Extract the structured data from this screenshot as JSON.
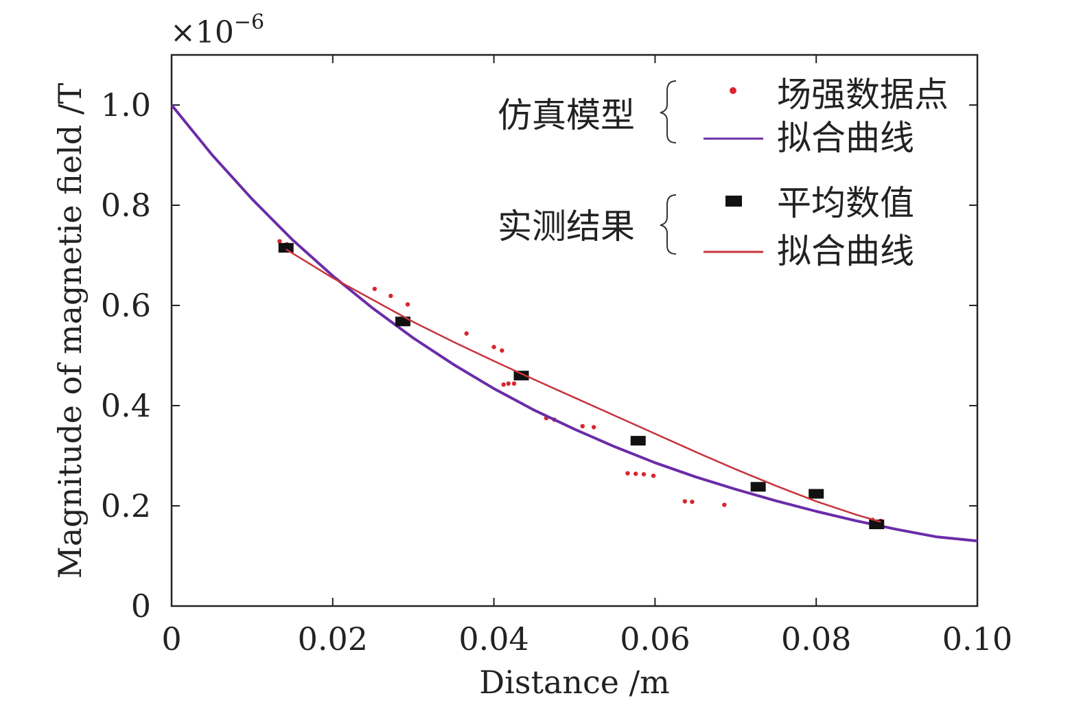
{
  "chart_data": {
    "type": "scatter",
    "xlabel": "Distance /m",
    "ylabel": "Magnitude of magnetie field /T",
    "y_multiplier": "×10",
    "y_multiplier_exp": "−6",
    "xlim": [
      0,
      0.1
    ],
    "ylim": [
      0,
      1.1
    ],
    "x_ticks": [
      0,
      0.02,
      0.04,
      0.06,
      0.08,
      0.1
    ],
    "x_tick_labels": [
      "0",
      "0.02",
      "0.04",
      "0.06",
      "0.08",
      "0.10"
    ],
    "y_ticks": [
      0,
      0.2,
      0.4,
      0.6,
      0.8,
      1.0
    ],
    "y_tick_labels": [
      "0",
      "0.2",
      "0.4",
      "0.6",
      "0.8",
      "1.0"
    ],
    "grid": false,
    "legend_position": "top-right",
    "legend_groups": [
      {
        "group_label": "仿真模型",
        "entries": [
          {
            "label": "场强数据点",
            "marker": "dot",
            "color": "#d9262e"
          },
          {
            "label": "拟合曲线",
            "marker": "line",
            "color": "#6a2ca8"
          }
        ]
      },
      {
        "group_label": "实测结果",
        "entries": [
          {
            "label": "平均数值",
            "marker": "square",
            "color": "#111111"
          },
          {
            "label": "拟合曲线",
            "marker": "line",
            "color": "#c8323a"
          }
        ]
      }
    ],
    "series": [
      {
        "kind": "scatter-dots",
        "color": "#d9262e",
        "points": [
          [
            0.0134,
            0.728
          ],
          [
            0.0143,
            0.722
          ],
          [
            0.0148,
            0.716
          ],
          [
            0.0252,
            0.633
          ],
          [
            0.0272,
            0.619
          ],
          [
            0.0293,
            0.602
          ],
          [
            0.0366,
            0.544
          ],
          [
            0.04,
            0.517
          ],
          [
            0.041,
            0.51
          ],
          [
            0.0412,
            0.442
          ],
          [
            0.0418,
            0.444
          ],
          [
            0.0425,
            0.444
          ],
          [
            0.0465,
            0.375
          ],
          [
            0.0475,
            0.372
          ],
          [
            0.051,
            0.359
          ],
          [
            0.0524,
            0.357
          ],
          [
            0.0566,
            0.265
          ],
          [
            0.0576,
            0.264
          ],
          [
            0.0586,
            0.263
          ],
          [
            0.0598,
            0.26
          ],
          [
            0.0637,
            0.209
          ],
          [
            0.0646,
            0.208
          ],
          [
            0.0686,
            0.202
          ],
          [
            0.087,
            0.172
          ],
          [
            0.088,
            0.17
          ]
        ]
      },
      {
        "kind": "fit-curve",
        "color": "#6a2ca8",
        "points": [
          [
            0.0,
            1.0
          ],
          [
            0.005,
            0.901
          ],
          [
            0.01,
            0.812
          ],
          [
            0.015,
            0.731
          ],
          [
            0.02,
            0.659
          ],
          [
            0.025,
            0.594
          ],
          [
            0.03,
            0.535
          ],
          [
            0.035,
            0.482
          ],
          [
            0.04,
            0.434
          ],
          [
            0.045,
            0.391
          ],
          [
            0.05,
            0.353
          ],
          [
            0.055,
            0.318
          ],
          [
            0.06,
            0.286
          ],
          [
            0.065,
            0.258
          ],
          [
            0.07,
            0.233
          ],
          [
            0.075,
            0.21
          ],
          [
            0.08,
            0.189
          ],
          [
            0.085,
            0.17
          ],
          [
            0.09,
            0.153
          ],
          [
            0.095,
            0.138
          ],
          [
            0.1,
            0.13
          ]
        ]
      },
      {
        "kind": "scatter-squares",
        "color": "#111111",
        "points": [
          [
            0.0142,
            0.715
          ],
          [
            0.0287,
            0.568
          ],
          [
            0.0434,
            0.46
          ],
          [
            0.0579,
            0.33
          ],
          [
            0.0728,
            0.238
          ],
          [
            0.08,
            0.224
          ],
          [
            0.0875,
            0.163
          ]
        ]
      },
      {
        "kind": "fit-curve",
        "color": "#c8323a",
        "points": [
          [
            0.0142,
            0.712
          ],
          [
            0.02,
            0.655
          ],
          [
            0.025,
            0.611
          ],
          [
            0.03,
            0.567
          ],
          [
            0.035,
            0.527
          ],
          [
            0.04,
            0.489
          ],
          [
            0.045,
            0.452
          ],
          [
            0.05,
            0.416
          ],
          [
            0.055,
            0.38
          ],
          [
            0.06,
            0.344
          ],
          [
            0.065,
            0.308
          ],
          [
            0.07,
            0.273
          ],
          [
            0.075,
            0.24
          ],
          [
            0.08,
            0.209
          ],
          [
            0.085,
            0.182
          ],
          [
            0.088,
            0.168
          ]
        ]
      }
    ]
  }
}
